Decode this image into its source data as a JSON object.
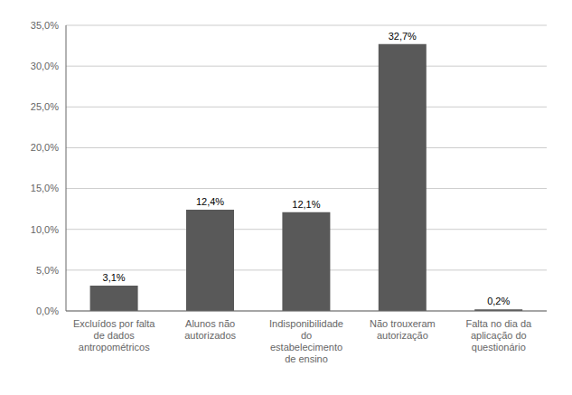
{
  "chart_data": {
    "type": "bar",
    "categories": [
      "Excluídos por falta\nde dados\nantropométricos",
      "Alunos não\nautorizados",
      "Indisponibilidade\ndo\nestabelecimento\nde ensino",
      "Não trouxeram\nautorização",
      "Falta no dia da\naplicação do\nquestionário"
    ],
    "values": [
      3.1,
      12.4,
      12.1,
      32.7,
      0.2
    ],
    "value_labels": [
      "3,1%",
      "12,4%",
      "12,1%",
      "32,7%",
      "0,2%"
    ],
    "color": "#595959",
    "ylim": [
      0,
      35
    ],
    "yticks": [
      {
        "value": 0.0,
        "label": "0,0%"
      },
      {
        "value": 5.0,
        "label": "5,0%"
      },
      {
        "value": 10.0,
        "label": "10,0%"
      },
      {
        "value": 15.0,
        "label": "15,0%"
      },
      {
        "value": 20.0,
        "label": "20,0%"
      },
      {
        "value": 25.0,
        "label": "25,0%"
      },
      {
        "value": 30.0,
        "label": "30,0%"
      },
      {
        "value": 35.0,
        "label": "35,0%"
      }
    ],
    "grid": true,
    "data_labels": true
  }
}
